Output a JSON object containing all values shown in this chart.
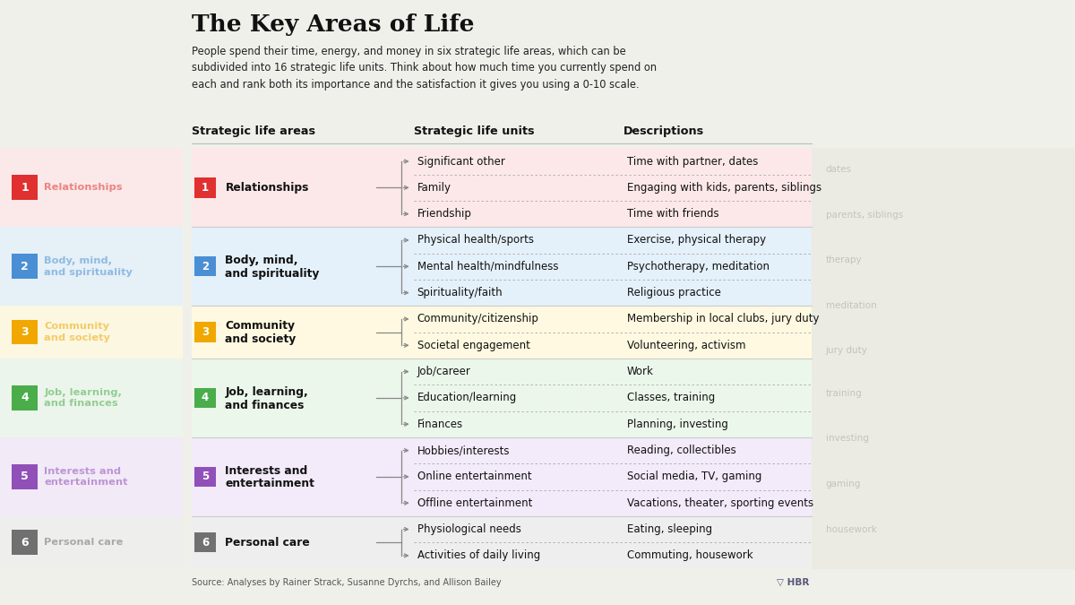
{
  "title": "The Key Areas of Life",
  "subtitle_line1": "People spend their time, energy, and money in six strategic life areas, which can be",
  "subtitle_line2": "subdivided into 16 strategic life units. Think about how much time you currently spend on",
  "subtitle_line3": "each and rank both its importance and the satisfaction it gives you using a 0-10 scale.",
  "header_col1": "Strategic life areas",
  "header_col2": "Strategic life units",
  "header_col3": "Descriptions",
  "source": "Source: Analyses by Rainer Strack, Susanne Dyrchs, and Allison Bailey",
  "hbr_text": "HBR",
  "background_color": "#f0f0eb",
  "areas": [
    {
      "number": "1",
      "name": "Relationships",
      "name_line2": "",
      "color": "#e03030",
      "bg_color": "#fce8e8",
      "units": [
        "Significant other",
        "Family",
        "Friendship"
      ],
      "descriptions": [
        "Time with partner, dates",
        "Engaging with kids, parents, siblings",
        "Time with friends"
      ]
    },
    {
      "number": "2",
      "name": "Body, mind,",
      "name_line2": "and spirituality",
      "color": "#4a8fd4",
      "bg_color": "#e4f0fa",
      "units": [
        "Physical health/sports",
        "Mental health/mindfulness",
        "Spirituality/faith"
      ],
      "descriptions": [
        "Exercise, physical therapy",
        "Psychotherapy, meditation",
        "Religious practice"
      ]
    },
    {
      "number": "3",
      "name": "Community",
      "name_line2": "and society",
      "color": "#f0a800",
      "bg_color": "#fef9e0",
      "units": [
        "Community/citizenship",
        "Societal engagement"
      ],
      "descriptions": [
        "Membership in local clubs, jury duty",
        "Volunteering, activism"
      ]
    },
    {
      "number": "4",
      "name": "Job, learning,",
      "name_line2": "and finances",
      "color": "#4aad4a",
      "bg_color": "#ecf7ec",
      "units": [
        "Job/career",
        "Education/learning",
        "Finances"
      ],
      "descriptions": [
        "Work",
        "Classes, training",
        "Planning, investing"
      ]
    },
    {
      "number": "5",
      "name": "Interests and",
      "name_line2": "entertainment",
      "color": "#9050b8",
      "bg_color": "#f3eafa",
      "units": [
        "Hobbies/interests",
        "Online entertainment",
        "Offline entertainment"
      ],
      "descriptions": [
        "Reading, collectibles",
        "Social media, TV, gaming",
        "Vacations, theater, sporting events"
      ]
    },
    {
      "number": "6",
      "name": "Personal care",
      "name_line2": "",
      "color": "#707070",
      "bg_color": "#eeeeee",
      "units": [
        "Physiological needs",
        "Activities of daily living"
      ],
      "descriptions": [
        "Eating, sleeping",
        "Commuting, housework"
      ]
    }
  ]
}
